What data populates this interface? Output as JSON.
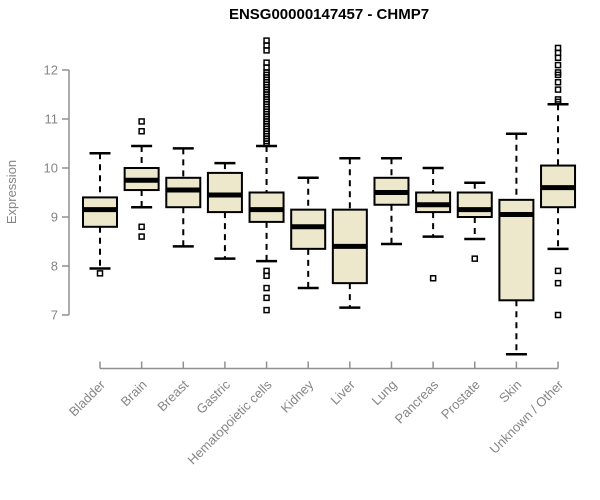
{
  "chart_data": {
    "type": "boxplot",
    "title": "ENSG00000147457 - CHMP7",
    "ylabel": "Expression",
    "xlabel": "",
    "ylim": [
      7,
      12
    ],
    "yticks": [
      7,
      8,
      9,
      10,
      11,
      12
    ],
    "grid": false,
    "legend": false,
    "colors": {
      "box_fill": "#EDE7CB",
      "box_stroke": "#000000",
      "axis_line": "#909090",
      "axis_text": "#858585",
      "title_text": "#000000"
    },
    "categories": [
      "Bladder",
      "Brain",
      "Breast",
      "Gastric",
      "Hematopoietic cells",
      "Kidney",
      "Liver",
      "Lung",
      "Pancreas",
      "Prostate",
      "Skin",
      "Unknown / Other"
    ],
    "series": [
      {
        "label": "Bladder",
        "slug": "bladder",
        "whisker_low": 7.95,
        "q1": 8.8,
        "median": 9.15,
        "q3": 9.4,
        "whisker_high": 10.3,
        "outliers_low": [
          7.85
        ],
        "outliers_high": []
      },
      {
        "label": "Brain",
        "slug": "brain",
        "whisker_low": 9.2,
        "q1": 9.55,
        "median": 9.75,
        "q3": 10.0,
        "whisker_high": 10.45,
        "outliers_low": [
          8.8,
          8.6
        ],
        "outliers_high": [
          10.75,
          10.95
        ]
      },
      {
        "label": "Breast",
        "slug": "breast",
        "whisker_low": 8.4,
        "q1": 9.2,
        "median": 9.55,
        "q3": 9.8,
        "whisker_high": 10.4,
        "outliers_low": [],
        "outliers_high": []
      },
      {
        "label": "Gastric",
        "slug": "gastric",
        "whisker_low": 8.15,
        "q1": 9.1,
        "median": 9.45,
        "q3": 9.9,
        "whisker_high": 10.1,
        "outliers_low": [],
        "outliers_high": []
      },
      {
        "label": "Hematopoietic cells",
        "slug": "hematopoietic-cells",
        "whisker_low": 8.1,
        "q1": 8.9,
        "median": 9.15,
        "q3": 9.5,
        "whisker_high": 10.45,
        "outliers_low": [
          7.9,
          7.8,
          7.55,
          7.35,
          7.1
        ],
        "outliers_high": [
          10.5,
          10.55,
          10.6,
          10.65,
          10.7,
          10.75,
          10.8,
          10.85,
          10.9,
          10.95,
          11.0,
          11.05,
          11.1,
          11.15,
          11.2,
          11.25,
          11.3,
          11.35,
          11.4,
          11.45,
          11.5,
          11.55,
          11.6,
          11.65,
          11.7,
          11.75,
          11.8,
          11.85,
          11.9,
          11.95,
          12.05,
          12.15,
          12.4,
          12.5,
          12.6
        ]
      },
      {
        "label": "Kidney",
        "slug": "kidney",
        "whisker_low": 7.55,
        "q1": 8.35,
        "median": 8.8,
        "q3": 9.15,
        "whisker_high": 9.8,
        "outliers_low": [],
        "outliers_high": []
      },
      {
        "label": "Liver",
        "slug": "liver",
        "whisker_low": 7.15,
        "q1": 7.65,
        "median": 8.4,
        "q3": 9.15,
        "whisker_high": 10.2,
        "outliers_low": [],
        "outliers_high": []
      },
      {
        "label": "Lung",
        "slug": "lung",
        "whisker_low": 8.45,
        "q1": 9.25,
        "median": 9.5,
        "q3": 9.8,
        "whisker_high": 10.2,
        "outliers_low": [],
        "outliers_high": []
      },
      {
        "label": "Pancreas",
        "slug": "pancreas",
        "whisker_low": 8.6,
        "q1": 9.1,
        "median": 9.25,
        "q3": 9.5,
        "whisker_high": 10.0,
        "outliers_low": [
          7.75
        ],
        "outliers_high": []
      },
      {
        "label": "Prostate",
        "slug": "prostate",
        "whisker_low": 8.55,
        "q1": 9.0,
        "median": 9.15,
        "q3": 9.5,
        "whisker_high": 9.7,
        "outliers_low": [
          8.15
        ],
        "outliers_high": []
      },
      {
        "label": "Skin",
        "slug": "skin",
        "whisker_low": 6.2,
        "q1": 7.3,
        "median": 9.05,
        "q3": 9.35,
        "whisker_high": 10.7,
        "outliers_low": [],
        "outliers_high": []
      },
      {
        "label": "Unknown / Other",
        "slug": "unknown-other",
        "whisker_low": 8.35,
        "q1": 9.2,
        "median": 9.6,
        "q3": 10.05,
        "whisker_high": 11.3,
        "outliers_low": [
          7.9,
          7.65,
          7.0
        ],
        "outliers_high": [
          11.35,
          11.4,
          11.6,
          11.75,
          11.9,
          11.95,
          12.1,
          12.25,
          12.35,
          12.45
        ]
      }
    ]
  }
}
